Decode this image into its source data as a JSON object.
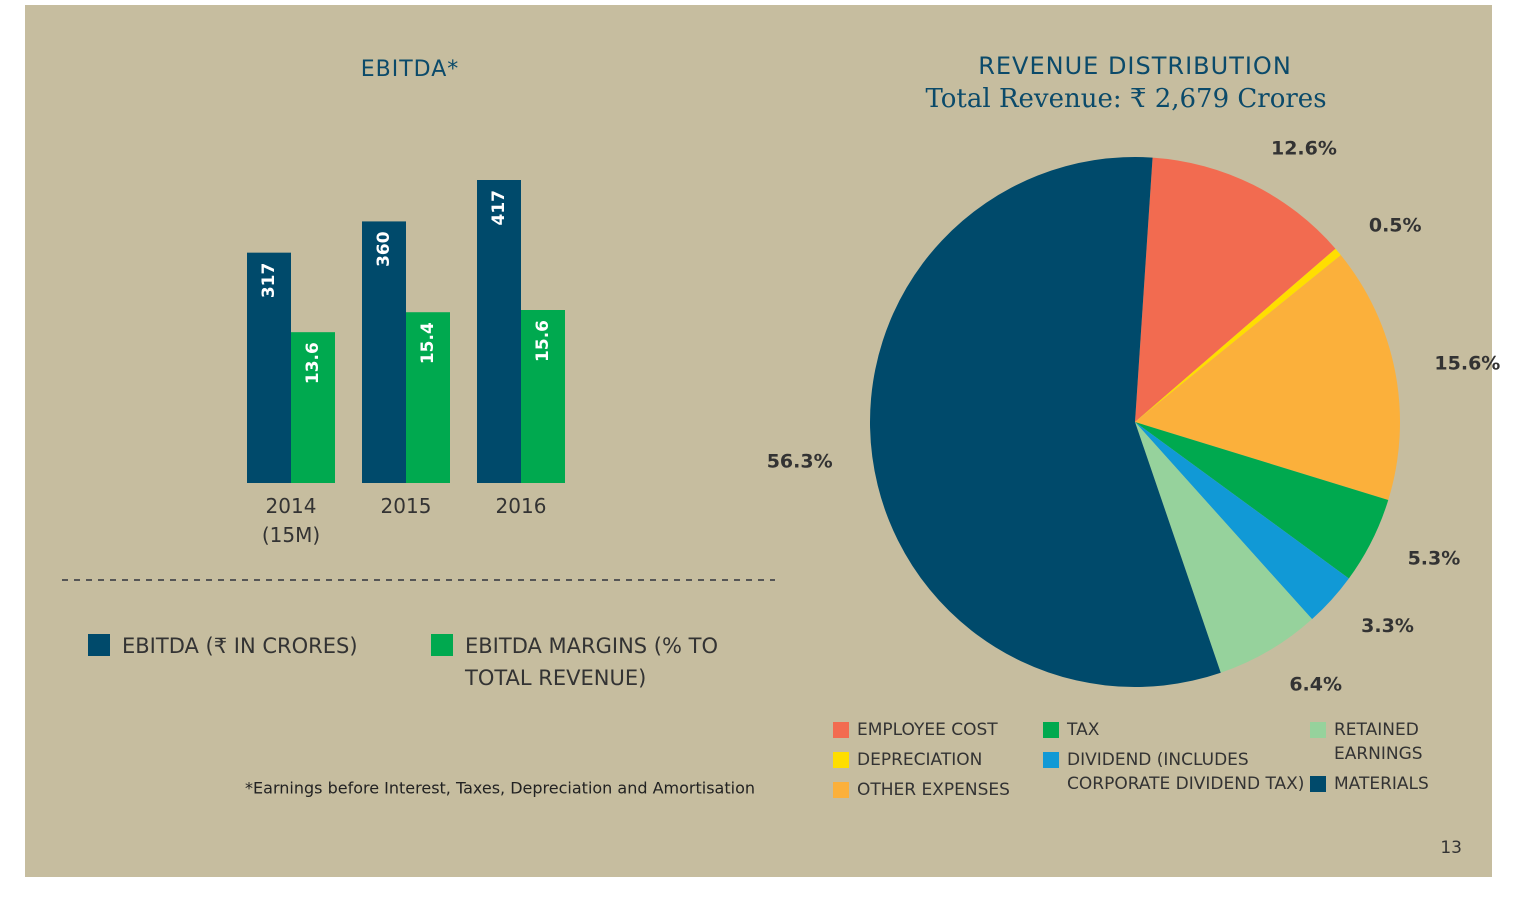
{
  "chart_data": [
    {
      "type": "bar",
      "title": "EBITDA*",
      "categories": [
        "2014 (15M)",
        "2015",
        "2016"
      ],
      "series": [
        {
          "name": "EBITDA (₹ IN CRORES)",
          "color": "#004a6b",
          "values": [
            317,
            360,
            417
          ]
        },
        {
          "name": "EBITDA MARGINS (% TO TOTAL REVENUE)",
          "color": "#00a94f",
          "values": [
            13.6,
            15.4,
            15.6
          ],
          "axis": "y2"
        }
      ],
      "footnote": "*Earnings before Interest, Taxes, Depreciation and Amortisation"
    },
    {
      "type": "pie",
      "title": "REVENUE DISTRIBUTION",
      "subtitle": "Total Revenue: ₹ 2,679 Crores",
      "categories": [
        "EMPLOYEE COST",
        "DEPRECIATION",
        "OTHER EXPENSES",
        "TAX",
        "DIVIDEND (INCLUDES CORPORATE DIVIDEND TAX)",
        "RETAINED EARNINGS",
        "MATERIALS"
      ],
      "values": [
        12.6,
        0.5,
        15.6,
        5.3,
        3.3,
        6.4,
        56.3
      ],
      "value_labels": [
        "12.6%",
        "0.5%",
        "15.6%",
        "5.3%",
        "3.3%",
        "6.4%",
        "56.3%"
      ],
      "colors": [
        "#f26b50",
        "#ffde00",
        "#fbb03b",
        "#00a94f",
        "#1199d6",
        "#96d29c",
        "#004a6b"
      ]
    }
  ],
  "page_number": 13
}
